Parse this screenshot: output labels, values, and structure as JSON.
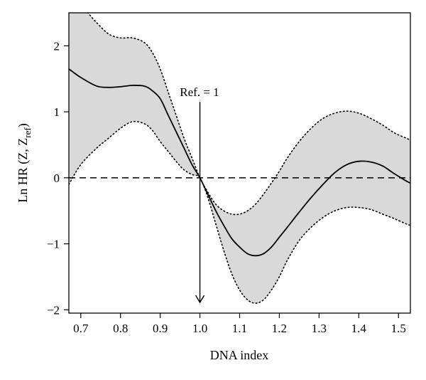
{
  "chart_data": {
    "type": "line",
    "xlabel": "DNA index",
    "ylabel": {
      "prefix": "Ln HR (Z, Z",
      "subscript": "ref",
      "suffix": ")"
    },
    "xlim": [
      0.67,
      1.53
    ],
    "ylim": [
      -2.05,
      2.5
    ],
    "x_ticks": [
      0.7,
      0.8,
      0.9,
      1.0,
      1.1,
      1.2,
      1.3,
      1.4,
      1.5
    ],
    "x_tick_labels": [
      "0.7",
      "0.8",
      "0.9",
      "1.0",
      "1.1",
      "1.2",
      "1.3",
      "1.4",
      "1.5"
    ],
    "y_ticks": [
      -2,
      -1,
      0,
      1,
      2
    ],
    "y_tick_labels": [
      "−2",
      "−1",
      "0",
      "1",
      "2"
    ],
    "grid": false,
    "reference_line_y": 0,
    "reference_arrow": {
      "label": "Ref. = 1",
      "x": 1.0
    },
    "colors": {
      "band_fill": "#d9d9d9",
      "line": "#000000"
    },
    "x": [
      0.67,
      0.7,
      0.74,
      0.77,
      0.8,
      0.83,
      0.86,
      0.88,
      0.9,
      0.92,
      0.94,
      0.96,
      0.98,
      1.0,
      1.02,
      1.04,
      1.06,
      1.08,
      1.1,
      1.12,
      1.14,
      1.16,
      1.18,
      1.2,
      1.22,
      1.25,
      1.28,
      1.31,
      1.34,
      1.37,
      1.4,
      1.43,
      1.46,
      1.49,
      1.52,
      1.53
    ],
    "series": [
      {
        "role": "estimate",
        "style": "solid",
        "values": [
          1.65,
          1.52,
          1.39,
          1.37,
          1.38,
          1.4,
          1.39,
          1.32,
          1.2,
          0.95,
          0.7,
          0.45,
          0.2,
          0.0,
          -0.25,
          -0.5,
          -0.72,
          -0.92,
          -1.05,
          -1.15,
          -1.18,
          -1.15,
          -1.05,
          -0.9,
          -0.75,
          -0.52,
          -0.3,
          -0.1,
          0.08,
          0.2,
          0.25,
          0.24,
          0.18,
          0.06,
          -0.05,
          -0.08
        ]
      },
      {
        "role": "upper-bound",
        "style": "dotted",
        "values": [
          2.6,
          2.6,
          2.35,
          2.18,
          2.12,
          2.12,
          2.05,
          1.9,
          1.65,
          1.3,
          0.95,
          0.6,
          0.3,
          0.0,
          -0.22,
          -0.4,
          -0.5,
          -0.55,
          -0.55,
          -0.5,
          -0.4,
          -0.25,
          -0.08,
          0.1,
          0.3,
          0.55,
          0.75,
          0.9,
          0.98,
          1.01,
          0.98,
          0.9,
          0.8,
          0.68,
          0.6,
          0.57
        ]
      },
      {
        "role": "lower-bound",
        "style": "dotted",
        "values": [
          -0.1,
          0.2,
          0.45,
          0.6,
          0.75,
          0.85,
          0.82,
          0.72,
          0.55,
          0.4,
          0.25,
          0.12,
          0.05,
          0.0,
          -0.3,
          -0.7,
          -1.1,
          -1.45,
          -1.7,
          -1.85,
          -1.9,
          -1.85,
          -1.7,
          -1.5,
          -1.25,
          -0.95,
          -0.75,
          -0.6,
          -0.5,
          -0.45,
          -0.45,
          -0.48,
          -0.55,
          -0.62,
          -0.7,
          -0.72
        ]
      }
    ]
  }
}
